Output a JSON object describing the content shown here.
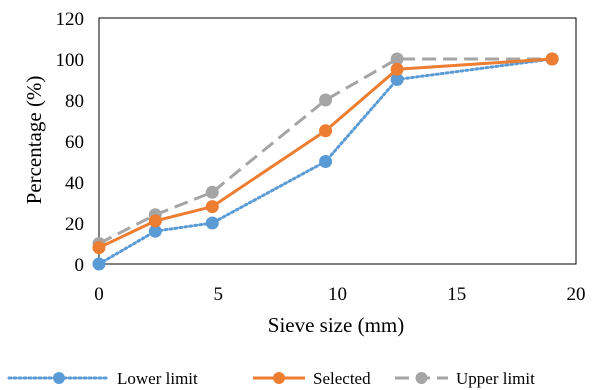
{
  "chart_data": {
    "type": "line",
    "xlabel": "Sieve size (mm)",
    "ylabel": "Percentage (%)",
    "xlim": [
      0,
      20
    ],
    "ylim": [
      0,
      120
    ],
    "xticks": [
      0,
      5,
      10,
      15,
      20
    ],
    "yticks": [
      0,
      20,
      40,
      60,
      80,
      100,
      120
    ],
    "grid": false,
    "legend_position": "bottom",
    "series": [
      {
        "name": "Lower limit",
        "color": "#5B9BD5",
        "style": "dotted",
        "x": [
          0,
          2.36,
          4.75,
          9.5,
          12.5,
          19
        ],
        "y": [
          0,
          16,
          20,
          50,
          90,
          100
        ]
      },
      {
        "name": "Selected",
        "color": "#ED7D31",
        "style": "solid",
        "x": [
          0,
          2.36,
          4.75,
          9.5,
          12.5,
          19
        ],
        "y": [
          8,
          21,
          28,
          65,
          95,
          100
        ]
      },
      {
        "name": "Upper limit",
        "color": "#A5A5A5",
        "style": "dashed",
        "x": [
          0,
          2.36,
          4.75,
          9.5,
          12.5,
          19
        ],
        "y": [
          10,
          24,
          35,
          80,
          100,
          100
        ]
      }
    ]
  }
}
